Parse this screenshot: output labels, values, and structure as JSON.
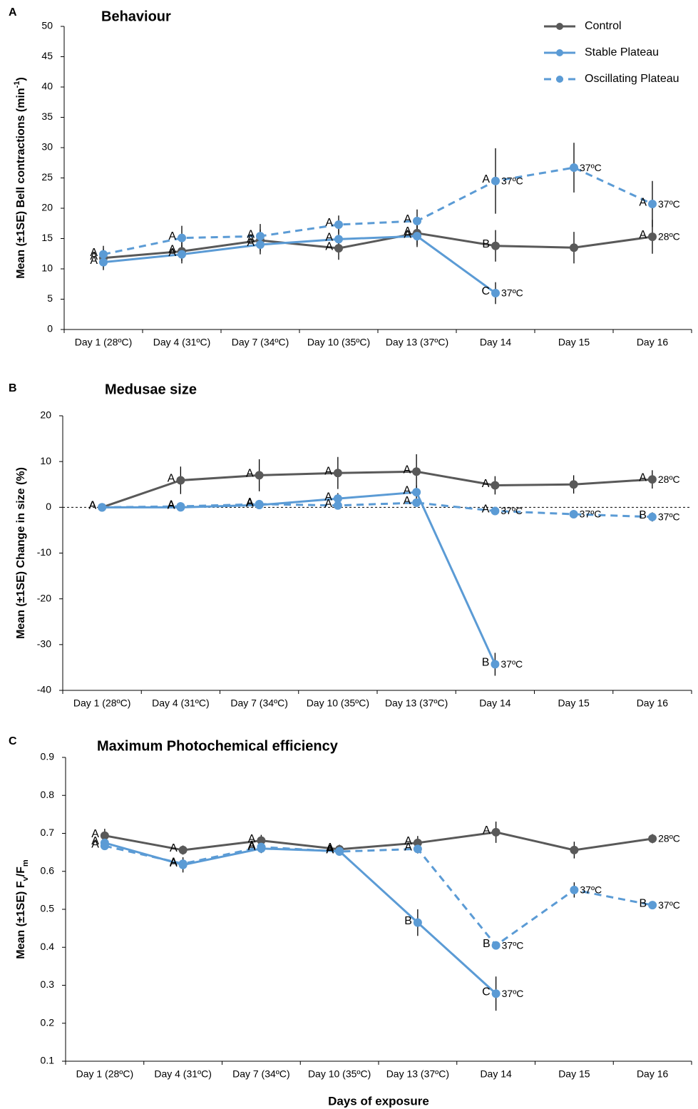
{
  "chart_data": [
    {
      "type": "line",
      "panel": "A",
      "title": "Behaviour",
      "ylabel": [
        {
          "text": "Mean (±1SE) Bell contractions (min"
        },
        {
          "text": "-1",
          "script": "super"
        },
        {
          "text": ")"
        }
      ],
      "categories": [
        "Day 1 (28ºC)",
        "Day 4 (31ºC)",
        "Day 7 (34ºC)",
        "Day 10 (35ºC)",
        "Day 13 (37ºC)",
        "Day 14",
        "Day 15",
        "Day 16"
      ],
      "ylim": [
        0,
        50
      ],
      "yticks": [
        0,
        5,
        10,
        15,
        20,
        25,
        30,
        35,
        40,
        45,
        50
      ],
      "legend": "top-right",
      "series": [
        {
          "name": "Control",
          "color": "#595959",
          "label_color": "#000000",
          "dashed": false,
          "values": [
            11.8,
            12.9,
            14.7,
            13.4,
            15.9,
            13.8,
            13.5,
            15.3
          ],
          "errors": [
            1.5,
            1.6,
            1.8,
            1.9,
            2.0,
            2.6,
            2.6,
            2.8
          ],
          "letters": [
            "A",
            "A",
            "A",
            "A",
            "A",
            "B",
            null,
            "A"
          ],
          "temps": [
            null,
            null,
            null,
            null,
            null,
            null,
            null,
            "28ºC"
          ]
        },
        {
          "name": "Stable Plateau",
          "color": "#5b9bd5",
          "label_color": "#2e75b6",
          "dashed": false,
          "values": [
            11.1,
            12.4,
            14.0,
            14.9,
            15.4,
            6.0,
            null,
            null
          ],
          "errors": [
            1.3,
            1.5,
            1.6,
            1.6,
            1.8,
            1.8,
            null,
            null
          ],
          "letters": [
            "A",
            "A",
            "A",
            "A",
            "A",
            "C",
            null,
            null
          ],
          "temps": [
            null,
            null,
            null,
            null,
            null,
            "37ºC",
            null,
            null
          ]
        },
        {
          "name": "Oscillating Plateau",
          "color": "#5b9bd5",
          "label_color": "#2e75b6",
          "dashed": true,
          "values": [
            12.4,
            15.1,
            15.4,
            17.3,
            17.9,
            24.5,
            26.7,
            20.7
          ],
          "errors": [
            1.4,
            2.0,
            2.0,
            1.5,
            1.9,
            5.4,
            4.1,
            3.8
          ],
          "letters": [
            "A",
            "A",
            "A",
            "A",
            "A",
            "A",
            null,
            "A"
          ],
          "temps": [
            null,
            null,
            null,
            null,
            null,
            "37ºC",
            "37ºC",
            "37ºC"
          ]
        }
      ]
    },
    {
      "type": "line",
      "panel": "B",
      "title": "Medusae size",
      "ylabel": [
        {
          "text": "Mean (±1SE) Change in size (%)"
        }
      ],
      "categories": [
        "Day 1 (28ºC)",
        "Day 4 (31ºC)",
        "Day 7 (34ºC)",
        "Day 10 (35ºC)",
        "Day 13 (37ºC)",
        "Day 14",
        "Day 15",
        "Day 16"
      ],
      "ylim": [
        -40,
        20
      ],
      "yticks": [
        -40,
        -30,
        -20,
        -10,
        0,
        10,
        20
      ],
      "reference_line": 0,
      "series": [
        {
          "color": "#595959",
          "label_color": "#000000",
          "dashed": false,
          "values": [
            0,
            5.9,
            7.0,
            7.5,
            7.8,
            4.8,
            5.0,
            6.1
          ],
          "errors": [
            0,
            3.0,
            3.5,
            3.5,
            3.8,
            2.0,
            2.0,
            2.0
          ],
          "letters": [
            "A",
            "A",
            "A",
            "A",
            "A",
            "A",
            null,
            "A"
          ],
          "temps": [
            null,
            null,
            null,
            null,
            null,
            null,
            null,
            "28ºC"
          ]
        },
        {
          "color": "#5b9bd5",
          "label_color": "#2e75b6",
          "dashed": false,
          "values": [
            0,
            0,
            0.5,
            1.9,
            3.3,
            -34.3,
            null,
            null
          ],
          "errors": [
            0,
            0.8,
            0.8,
            1.2,
            1.5,
            2.5,
            null,
            null
          ],
          "letters": [
            "A",
            "A",
            "A",
            "A",
            "A",
            "B",
            null,
            null
          ],
          "temps": [
            null,
            null,
            null,
            null,
            null,
            "37ºC",
            null,
            null
          ]
        },
        {
          "color": "#5b9bd5",
          "label_color": "#2e75b6",
          "dashed": true,
          "values": [
            0,
            0.2,
            0.7,
            0.4,
            1.0,
            -0.8,
            -1.5,
            -2.1
          ],
          "errors": [
            0,
            0.6,
            0.8,
            0.8,
            0.8,
            0.8,
            0.8,
            1.0
          ],
          "letters": [
            "A",
            "A",
            "A",
            "A",
            "A",
            "A",
            null,
            "B"
          ],
          "temps": [
            null,
            null,
            null,
            null,
            null,
            "37ºC",
            "37ºC",
            "37ºC"
          ]
        }
      ]
    },
    {
      "type": "line",
      "panel": "C",
      "title": "Maximum Photochemical efficiency",
      "ylabel": [
        {
          "text": "Mean (±1SE)  F"
        },
        {
          "text": "v",
          "script": "sub"
        },
        {
          "text": "/F"
        },
        {
          "text": "m",
          "script": "sub"
        }
      ],
      "xlabel": "Days of exposure",
      "categories": [
        "Day 1 (28ºC)",
        "Day 4 (31ºC)",
        "Day 7 (34ºC)",
        "Day 10 (35ºC)",
        "Day 13 (37ºC)",
        "Day 14",
        "Day 15",
        "Day 16"
      ],
      "ylim": [
        0.1,
        0.9
      ],
      "yticks": [
        0.1,
        0.2,
        0.3,
        0.4,
        0.5,
        0.6,
        0.7,
        0.8,
        0.9
      ],
      "series": [
        {
          "color": "#595959",
          "label_color": "#000000",
          "dashed": false,
          "values": [
            0.694,
            0.656,
            0.681,
            0.658,
            0.675,
            0.703,
            0.656,
            0.686
          ],
          "errors": [
            0.018,
            0.012,
            0.015,
            0.012,
            0.018,
            0.028,
            0.022,
            0.012
          ],
          "letters": [
            "A",
            "A",
            "A",
            "A",
            "A",
            "A",
            null,
            null
          ],
          "temps": [
            null,
            null,
            null,
            null,
            null,
            null,
            null,
            "28ºC"
          ]
        },
        {
          "color": "#5b9bd5",
          "label_color": "#2e75b6",
          "dashed": false,
          "values": [
            0.675,
            0.617,
            0.66,
            0.653,
            0.465,
            0.278,
            null,
            null
          ],
          "errors": [
            0.012,
            0.02,
            0.012,
            0.012,
            0.035,
            0.045,
            null,
            null
          ],
          "letters": [
            "A",
            "A",
            "A",
            "A",
            "B",
            "C",
            null,
            null
          ],
          "temps": [
            null,
            null,
            null,
            null,
            null,
            "37ºC",
            null,
            null
          ]
        },
        {
          "color": "#5b9bd5",
          "label_color": "#2e75b6",
          "dashed": true,
          "values": [
            0.667,
            0.62,
            0.664,
            0.652,
            0.659,
            0.405,
            0.551,
            0.511
          ],
          "errors": [
            0.01,
            0.012,
            0.012,
            0.01,
            0.012,
            0.01,
            0.02,
            0.01
          ],
          "letters": [
            "A",
            "A",
            "A",
            "A",
            "A",
            "B",
            null,
            "B"
          ],
          "temps": [
            null,
            null,
            null,
            null,
            null,
            "37ºC",
            "37ºC",
            "37ºC"
          ]
        }
      ]
    }
  ]
}
